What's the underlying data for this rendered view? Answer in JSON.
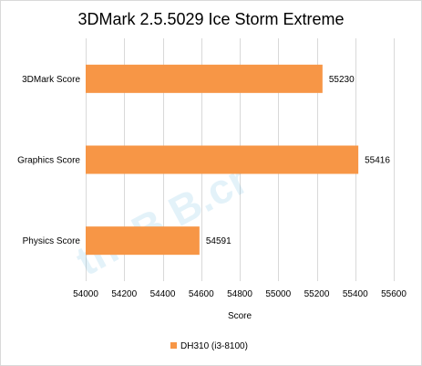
{
  "chart_data": {
    "type": "bar",
    "orientation": "horizontal",
    "title": "3DMark 2.5.5029 Ice Storm Extreme",
    "xlabel": "Score",
    "ylabel": "",
    "categories": [
      "3DMark Score",
      "Graphics Score",
      "Physics Score"
    ],
    "series": [
      {
        "name": "DH310 (i3-8100)",
        "values": [
          55230,
          55416,
          54591
        ],
        "color": "#f79646"
      }
    ],
    "xlim": [
      54000,
      55600
    ],
    "xticks": [
      54000,
      54200,
      54400,
      54600,
      54800,
      55000,
      55200,
      55400,
      55600
    ],
    "grid": true,
    "legend_position": "bottom",
    "data_labels": true
  },
  "watermark": {
    "text": "theB B.cr"
  }
}
